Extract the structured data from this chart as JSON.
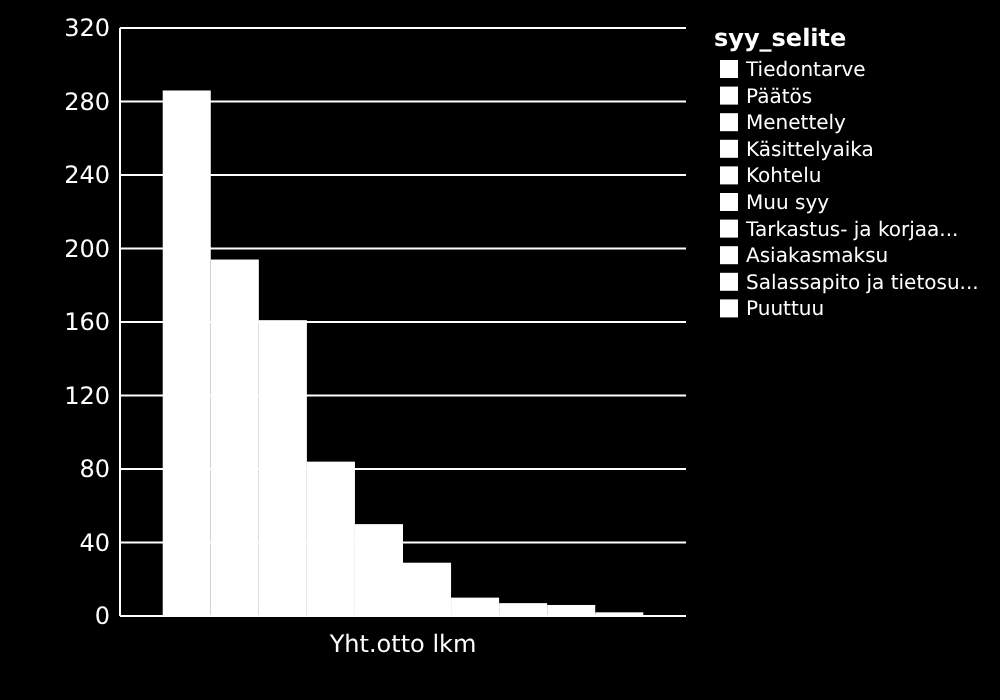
{
  "chart_data": {
    "type": "bar",
    "categories": [
      "Yht.otto lkm"
    ],
    "legend_title": "syy_selite",
    "legend": "right",
    "grid": "y",
    "ylim": [
      0,
      320
    ],
    "yticks": [
      0,
      40,
      80,
      120,
      160,
      200,
      240,
      280,
      320
    ],
    "series": [
      {
        "name": "Tiedontarve",
        "color": "#ffffff",
        "values": [
          286
        ]
      },
      {
        "name": "Päätös",
        "color": "#ffffff",
        "values": [
          194
        ]
      },
      {
        "name": "Menettely",
        "color": "#ffffff",
        "values": [
          161
        ]
      },
      {
        "name": "Käsittelyaika",
        "color": "#ffffff",
        "values": [
          84
        ]
      },
      {
        "name": "Kohtelu",
        "color": "#ffffff",
        "values": [
          50
        ]
      },
      {
        "name": "Muu syy",
        "color": "#ffffff",
        "values": [
          29
        ]
      },
      {
        "name": "Tarkastus- ja korjaa...",
        "color": "#ffffff",
        "values": [
          10
        ]
      },
      {
        "name": "Asiakasmaksu",
        "color": "#ffffff",
        "values": [
          7
        ]
      },
      {
        "name": "Salassapito ja tietosu...",
        "color": "#ffffff",
        "values": [
          6
        ]
      },
      {
        "name": "Puuttuu",
        "color": "#ffffff",
        "values": [
          2
        ]
      }
    ]
  }
}
